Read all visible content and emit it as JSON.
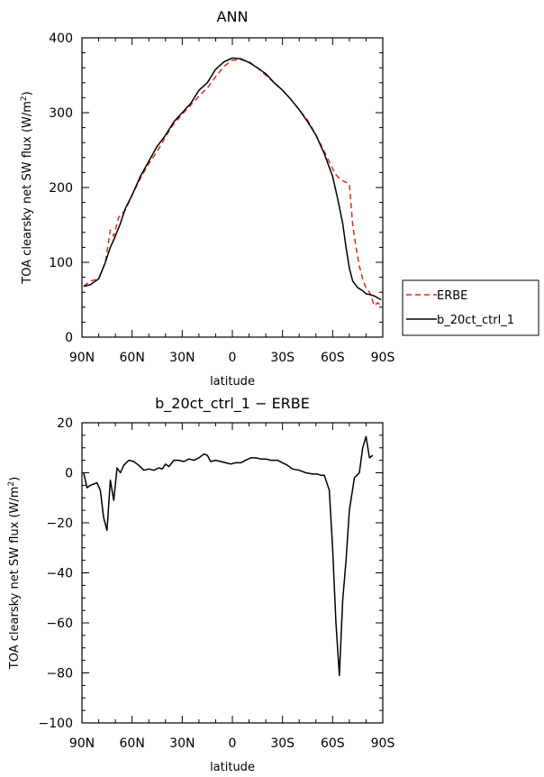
{
  "chart_data": [
    {
      "type": "line",
      "title": "ANN",
      "xlabel": "latitude",
      "ylabel": "TOA clearsky net SW flux (W/m²)",
      "ylabel_base": "TOA clearsky net SW flux (W/m",
      "ylabel_sup": "2",
      "ylabel_end": ")",
      "xlim": [
        90,
        -90
      ],
      "ylim": [
        0,
        400
      ],
      "xticks": [
        {
          "value": 90,
          "label": "90N"
        },
        {
          "value": 60,
          "label": "60N"
        },
        {
          "value": 30,
          "label": "30N"
        },
        {
          "value": 0,
          "label": "0"
        },
        {
          "value": -30,
          "label": "30S"
        },
        {
          "value": -60,
          "label": "60S"
        },
        {
          "value": -90,
          "label": "90S"
        }
      ],
      "yticks": [
        {
          "value": 0,
          "label": "0"
        },
        {
          "value": 100,
          "label": "100"
        },
        {
          "value": 200,
          "label": "200"
        },
        {
          "value": 300,
          "label": "300"
        },
        {
          "value": 400,
          "label": "400"
        }
      ],
      "legend": "right",
      "series": [
        {
          "name": "ERBE",
          "color": "#e8231f",
          "dash": "6,4",
          "points": [
            [
              89,
              68
            ],
            [
              85,
              75
            ],
            [
              80,
              78
            ],
            [
              76,
              100
            ],
            [
              73,
              143
            ],
            [
              71,
              135
            ],
            [
              68,
              160
            ],
            [
              64,
              170
            ],
            [
              60,
              190
            ],
            [
              55,
              212
            ],
            [
              50,
              232
            ],
            [
              45,
              248
            ],
            [
              40,
              268
            ],
            [
              35,
              285
            ],
            [
              30,
              298
            ],
            [
              25,
              310
            ],
            [
              20,
              322
            ],
            [
              15,
              333
            ],
            [
              10,
              348
            ],
            [
              5,
              362
            ],
            [
              0,
              370
            ],
            [
              -5,
              371
            ],
            [
              -10,
              368
            ],
            [
              -15,
              360
            ],
            [
              -20,
              350
            ],
            [
              -25,
              340
            ],
            [
              -30,
              330
            ],
            [
              -35,
              318
            ],
            [
              -40,
              304
            ],
            [
              -45,
              290
            ],
            [
              -50,
              270
            ],
            [
              -55,
              248
            ],
            [
              -60,
              225
            ],
            [
              -62,
              217
            ],
            [
              -65,
              210
            ],
            [
              -70,
              205
            ],
            [
              -72,
              150
            ],
            [
              -74,
              120
            ],
            [
              -76,
              95
            ],
            [
              -78,
              78
            ],
            [
              -80,
              65
            ],
            [
              -82,
              60
            ],
            [
              -85,
              42
            ],
            [
              -87,
              46
            ],
            [
              -89,
              42
            ]
          ]
        },
        {
          "name": "b_20ct_ctrl_1",
          "color": "#000000",
          "dash": "",
          "points": [
            [
              89,
              68
            ],
            [
              85,
              70
            ],
            [
              80,
              78
            ],
            [
              76,
              100
            ],
            [
              73,
              120
            ],
            [
              70,
              135
            ],
            [
              67,
              152
            ],
            [
              64,
              172
            ],
            [
              60,
              190
            ],
            [
              55,
              215
            ],
            [
              50,
              235
            ],
            [
              45,
              255
            ],
            [
              40,
              270
            ],
            [
              35,
              288
            ],
            [
              30,
              300
            ],
            [
              25,
              312
            ],
            [
              20,
              330
            ],
            [
              15,
              340
            ],
            [
              10,
              358
            ],
            [
              5,
              368
            ],
            [
              0,
              373
            ],
            [
              -5,
              372
            ],
            [
              -10,
              367
            ],
            [
              -15,
              360
            ],
            [
              -20,
              352
            ],
            [
              -25,
              340
            ],
            [
              -30,
              330
            ],
            [
              -35,
              318
            ],
            [
              -40,
              304
            ],
            [
              -45,
              288
            ],
            [
              -50,
              270
            ],
            [
              -55,
              245
            ],
            [
              -60,
              215
            ],
            [
              -63,
              185
            ],
            [
              -66,
              152
            ],
            [
              -68,
              120
            ],
            [
              -70,
              92
            ],
            [
              -72,
              75
            ],
            [
              -75,
              66
            ],
            [
              -78,
              62
            ],
            [
              -80,
              58
            ],
            [
              -82,
              57
            ],
            [
              -85,
              55
            ],
            [
              -89,
              50
            ]
          ]
        }
      ]
    },
    {
      "type": "line",
      "title": "b_20ct_ctrl_1 − ERBE",
      "xlabel": "latitude",
      "ylabel": "TOA clearsky net SW flux (W/m²)",
      "ylabel_base": "TOA clearsky net SW flux (W/m",
      "ylabel_sup": "2",
      "ylabel_end": ")",
      "xlim": [
        90,
        -90
      ],
      "ylim": [
        -100,
        20
      ],
      "xticks": [
        {
          "value": 90,
          "label": "90N"
        },
        {
          "value": 60,
          "label": "60N"
        },
        {
          "value": 30,
          "label": "30N"
        },
        {
          "value": 0,
          "label": "0"
        },
        {
          "value": -30,
          "label": "30S"
        },
        {
          "value": -60,
          "label": "60S"
        },
        {
          "value": -90,
          "label": "90S"
        }
      ],
      "yticks": [
        {
          "value": -100,
          "label": "−100"
        },
        {
          "value": -80,
          "label": "−80"
        },
        {
          "value": -60,
          "label": "−60"
        },
        {
          "value": -40,
          "label": "−40"
        },
        {
          "value": -20,
          "label": "−20"
        },
        {
          "value": 0,
          "label": "0"
        },
        {
          "value": 20,
          "label": "20"
        }
      ],
      "series": [
        {
          "name": "",
          "color": "#000000",
          "dash": "",
          "points": [
            [
              89,
              0
            ],
            [
              87,
              -6
            ],
            [
              85,
              -5
            ],
            [
              83,
              -4.5
            ],
            [
              81,
              -4
            ],
            [
              79,
              -7
            ],
            [
              77,
              -18
            ],
            [
              75,
              -23
            ],
            [
              73,
              -3
            ],
            [
              71,
              -11
            ],
            [
              69,
              2
            ],
            [
              67,
              0
            ],
            [
              65,
              3
            ],
            [
              62,
              5
            ],
            [
              59,
              4.5
            ],
            [
              56,
              3
            ],
            [
              53,
              1
            ],
            [
              50,
              1.5
            ],
            [
              47,
              1
            ],
            [
              44,
              2
            ],
            [
              42,
              1.5
            ],
            [
              40,
              3.5
            ],
            [
              38,
              2.5
            ],
            [
              35,
              5
            ],
            [
              32,
              5
            ],
            [
              29,
              4.5
            ],
            [
              26,
              5.5
            ],
            [
              23,
              5
            ],
            [
              20,
              6
            ],
            [
              17,
              7.5
            ],
            [
              15,
              7
            ],
            [
              13,
              4.5
            ],
            [
              10,
              5
            ],
            [
              7,
              4.5
            ],
            [
              4,
              4
            ],
            [
              1,
              3.5
            ],
            [
              -2,
              4
            ],
            [
              -5,
              4
            ],
            [
              -8,
              5
            ],
            [
              -11,
              6
            ],
            [
              -14,
              6
            ],
            [
              -17,
              5.5
            ],
            [
              -20,
              5.5
            ],
            [
              -23,
              5
            ],
            [
              -27,
              5
            ],
            [
              -30,
              4
            ],
            [
              -33,
              3
            ],
            [
              -36,
              1.5
            ],
            [
              -40,
              1
            ],
            [
              -44,
              0
            ],
            [
              -48,
              -0.5
            ],
            [
              -51,
              -0.5
            ],
            [
              -53,
              -1
            ],
            [
              -55,
              -1
            ],
            [
              -58,
              -7
            ],
            [
              -60,
              -30
            ],
            [
              -62,
              -60
            ],
            [
              -64,
              -81
            ],
            [
              -66,
              -51
            ],
            [
              -68,
              -35
            ],
            [
              -70,
              -15
            ],
            [
              -73,
              -2
            ],
            [
              -76,
              0
            ],
            [
              -78,
              10
            ],
            [
              -80,
              14.5
            ],
            [
              -82,
              6
            ],
            [
              -84,
              7
            ]
          ]
        }
      ]
    }
  ]
}
